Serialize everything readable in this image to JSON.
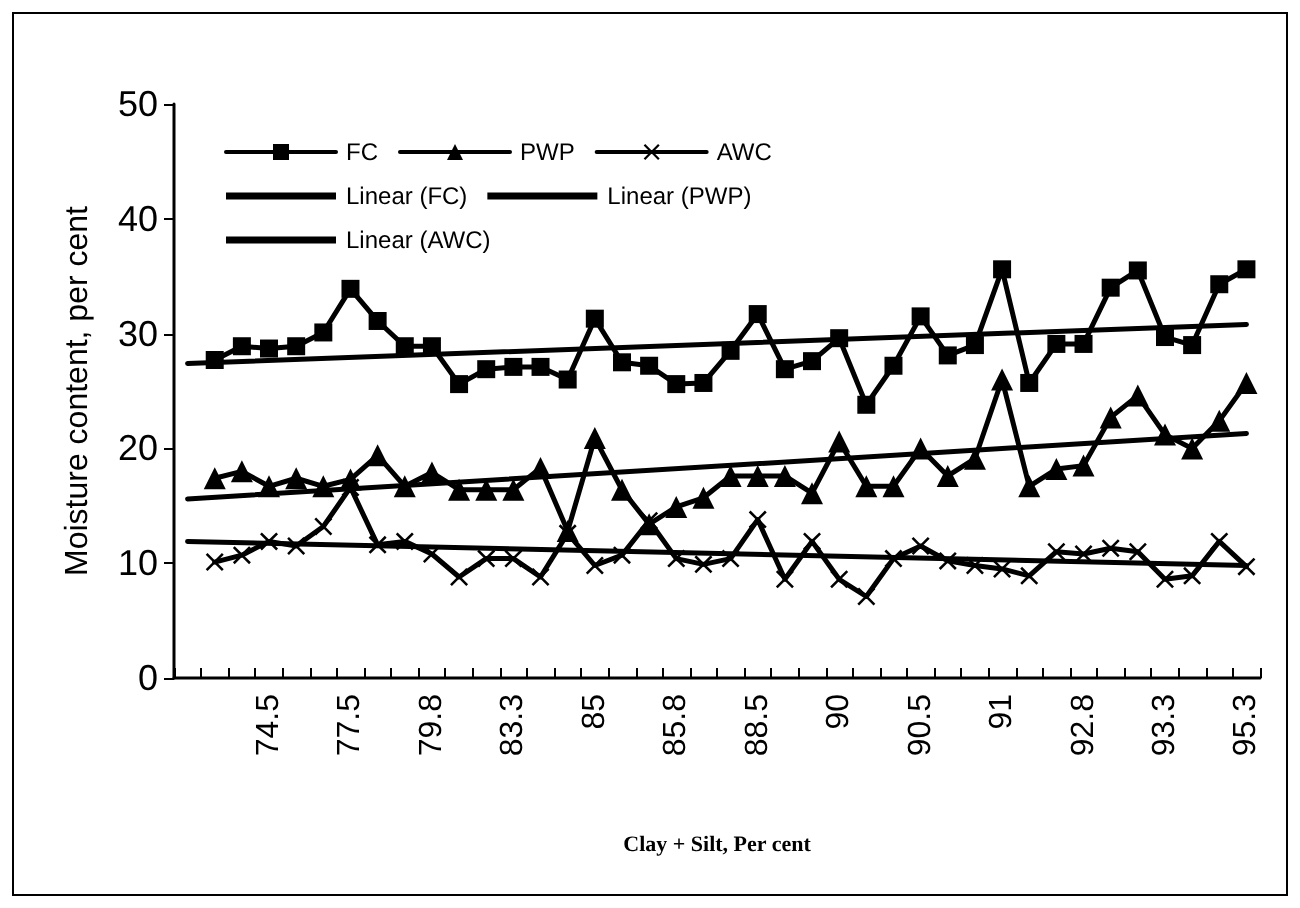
{
  "chart_data": {
    "type": "line",
    "xlabel": "Clay + Silt, Per cent",
    "ylabel": "Moisture content, per cent",
    "categories": [
      null,
      null,
      null,
      "74.5",
      null,
      null,
      "77.5",
      null,
      null,
      "79.8",
      null,
      null,
      "83.3",
      null,
      null,
      "85",
      null,
      null,
      "85.8",
      null,
      null,
      "88.5",
      null,
      null,
      "90",
      null,
      null,
      "90.5",
      null,
      null,
      "91",
      null,
      null,
      "92.8",
      null,
      null,
      "93.3",
      null,
      null,
      "95.3"
    ],
    "ylim": [
      0,
      50
    ],
    "yticks": [
      0,
      10,
      20,
      30,
      40,
      50
    ],
    "grid": false,
    "legend": "top left",
    "line_style": "solid",
    "series": [
      {
        "name": "FC",
        "color": "#000000",
        "marker": "square",
        "values": [
          null,
          27.7,
          28.9,
          28.7,
          28.9,
          30.1,
          33.9,
          31.1,
          28.9,
          28.9,
          25.6,
          26.9,
          27.1,
          27.1,
          26.0,
          31.3,
          27.5,
          27.2,
          25.6,
          25.7,
          28.5,
          31.7,
          26.9,
          27.6,
          29.6,
          23.8,
          27.2,
          31.5,
          28.1,
          29.0,
          35.6,
          25.7,
          29.1,
          29.1,
          34.0,
          35.5,
          29.7,
          29.0,
          34.3,
          35.6
        ]
      },
      {
        "name": "PWP",
        "color": "#000000",
        "marker": "triangle",
        "values": [
          null,
          17.4,
          18.0,
          16.7,
          17.4,
          16.7,
          17.3,
          19.4,
          16.7,
          17.9,
          16.4,
          16.4,
          16.4,
          18.3,
          12.8,
          20.9,
          16.4,
          13.4,
          14.9,
          15.7,
          17.6,
          17.6,
          17.6,
          16.1,
          20.6,
          16.7,
          16.7,
          20.0,
          17.6,
          19.1,
          26.0,
          16.7,
          18.2,
          18.5,
          22.7,
          24.6,
          21.2,
          20.0,
          22.4,
          25.7
        ]
      },
      {
        "name": "AWC",
        "color": "#000000",
        "marker": "cross",
        "values": [
          null,
          10.1,
          10.7,
          11.9,
          11.5,
          13.2,
          16.6,
          11.6,
          11.9,
          10.8,
          8.8,
          10.4,
          10.4,
          8.8,
          12.6,
          9.8,
          10.7,
          13.7,
          10.4,
          9.9,
          10.4,
          13.8,
          8.6,
          11.9,
          8.6,
          7.1,
          10.4,
          11.5,
          10.2,
          9.8,
          9.5,
          8.9,
          11.0,
          10.8,
          11.3,
          11.0,
          8.6,
          8.9,
          11.9,
          9.7
        ]
      },
      {
        "name": "Linear (FC)",
        "color": "#000000",
        "marker": "none",
        "values": [
          27.4,
          null,
          null,
          null,
          null,
          null,
          null,
          null,
          null,
          null,
          null,
          null,
          null,
          null,
          null,
          null,
          null,
          null,
          null,
          null,
          null,
          null,
          null,
          null,
          null,
          null,
          null,
          null,
          null,
          null,
          null,
          null,
          null,
          null,
          null,
          null,
          null,
          null,
          null,
          30.8
        ]
      },
      {
        "name": "Linear (PWP)",
        "color": "#000000",
        "marker": "none",
        "values": [
          15.6,
          null,
          null,
          null,
          null,
          null,
          null,
          null,
          null,
          null,
          null,
          null,
          null,
          null,
          null,
          null,
          null,
          null,
          null,
          null,
          null,
          null,
          null,
          null,
          null,
          null,
          null,
          null,
          null,
          null,
          null,
          null,
          null,
          null,
          null,
          null,
          null,
          null,
          null,
          21.3
        ]
      },
      {
        "name": "Linear (AWC)",
        "color": "#000000",
        "marker": "none",
        "values": [
          11.9,
          null,
          null,
          null,
          null,
          null,
          null,
          null,
          null,
          null,
          null,
          null,
          null,
          null,
          null,
          null,
          null,
          null,
          null,
          null,
          null,
          null,
          null,
          null,
          null,
          null,
          null,
          null,
          null,
          null,
          null,
          null,
          null,
          null,
          null,
          null,
          null,
          null,
          null,
          9.8
        ]
      }
    ]
  }
}
